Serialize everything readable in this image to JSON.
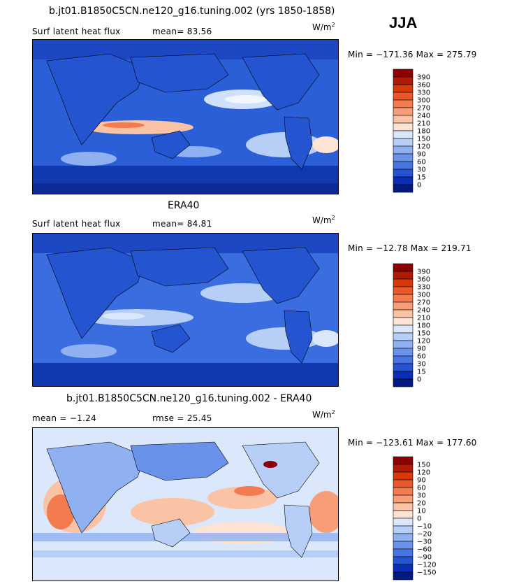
{
  "figure": {
    "season": "JJA"
  },
  "panels": [
    {
      "title": "b.jt01.B1850C5CN.ne120_g16.tuning.002 (yrs 1850-1858)",
      "left_label": "Surf latent heat flux",
      "center_label": "mean=  83.56",
      "units": "W/m",
      "units_sup": "2",
      "minmax": "Min = −171.36 Max = 275.79",
      "colorbar": {
        "levels": [
          "390",
          "360",
          "330",
          "300",
          "270",
          "240",
          "210",
          "180",
          "150",
          "120",
          "90",
          "60",
          "30",
          "15",
          "0"
        ],
        "colors": [
          "#8b0000",
          "#b01a00",
          "#d43a0a",
          "#e8582a",
          "#f27c4f",
          "#f79e78",
          "#fbc3a5",
          "#fde3d4",
          "#dbe8fb",
          "#b7cef7",
          "#8fb1f2",
          "#6a92ea",
          "#4776e0",
          "#2454cf",
          "#0a2fb5",
          "#001a80"
        ]
      }
    },
    {
      "title": "ERA40",
      "left_label": "Surf latent heat flux",
      "center_label": "mean=  84.81",
      "units": "W/m",
      "units_sup": "2",
      "minmax": "Min = −12.78 Max = 219.71",
      "colorbar": {
        "levels": [
          "390",
          "360",
          "330",
          "300",
          "270",
          "240",
          "210",
          "180",
          "150",
          "120",
          "90",
          "60",
          "30",
          "15",
          "0"
        ],
        "colors": [
          "#8b0000",
          "#b01a00",
          "#d43a0a",
          "#e8582a",
          "#f27c4f",
          "#f79e78",
          "#fbc3a5",
          "#fde3d4",
          "#dbe8fb",
          "#b7cef7",
          "#8fb1f2",
          "#6a92ea",
          "#4776e0",
          "#2454cf",
          "#0a2fb5",
          "#001a80"
        ]
      }
    },
    {
      "title": "b.jt01.B1850C5CN.ne120_g16.tuning.002 - ERA40",
      "left_label": "mean =   −1.24",
      "center_label": "rmse =  25.45",
      "units": "W/m",
      "units_sup": "2",
      "minmax": "Min = −123.61 Max = 177.60",
      "colorbar": {
        "levels": [
          "150",
          "120",
          "90",
          "60",
          "30",
          "20",
          "10",
          "0",
          "−10",
          "−20",
          "−30",
          "−60",
          "−90",
          "−120",
          "−150"
        ],
        "colors": [
          "#8b0000",
          "#b01a00",
          "#d43a0a",
          "#e8582a",
          "#f27c4f",
          "#f79e78",
          "#fbc3a5",
          "#fde3d4",
          "#dbe8fb",
          "#b7cef7",
          "#8fb1f2",
          "#6a92ea",
          "#4776e0",
          "#2454cf",
          "#0a2fb5",
          "#001a80"
        ]
      }
    }
  ],
  "chart_data": [
    {
      "type": "heatmap",
      "title": "b.jt01.B1850C5CN.ne120_g16.tuning.002 (yrs 1850-1858)",
      "variable": "Surf latent heat flux",
      "units": "W/m2",
      "mean": 83.56,
      "min": -171.36,
      "max": 275.79,
      "levels": [
        0,
        15,
        30,
        60,
        90,
        120,
        150,
        180,
        210,
        240,
        270,
        300,
        330,
        360,
        390
      ]
    },
    {
      "type": "heatmap",
      "title": "ERA40",
      "variable": "Surf latent heat flux",
      "units": "W/m2",
      "mean": 84.81,
      "min": -12.78,
      "max": 219.71,
      "levels": [
        0,
        15,
        30,
        60,
        90,
        120,
        150,
        180,
        210,
        240,
        270,
        300,
        330,
        360,
        390
      ]
    },
    {
      "type": "heatmap",
      "title": "b.jt01.B1850C5CN.ne120_g16.tuning.002 - ERA40",
      "units": "W/m2",
      "mean": -1.24,
      "rmse": 25.45,
      "min": -123.61,
      "max": 177.6,
      "levels": [
        -150,
        -120,
        -90,
        -60,
        -30,
        -20,
        -10,
        0,
        10,
        20,
        30,
        60,
        90,
        120,
        150
      ]
    }
  ]
}
